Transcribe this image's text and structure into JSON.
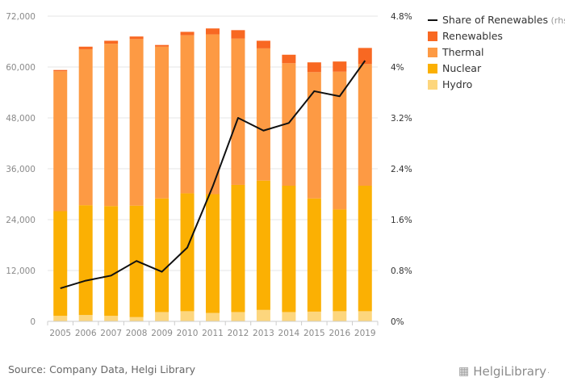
{
  "chart_data": {
    "type": "bar",
    "stacked": true,
    "categories": [
      "2005",
      "2006",
      "2007",
      "2008",
      "2009",
      "2010",
      "2011",
      "2012",
      "2013",
      "2014",
      "2015",
      "2016",
      "2019"
    ],
    "series": [
      {
        "name": "Hydro",
        "color": "#fdd67d",
        "values": [
          1300,
          1500,
          1300,
          1000,
          2200,
          2400,
          2000,
          2200,
          2700,
          2200,
          2300,
          2400,
          2400
        ]
      },
      {
        "name": "Nuclear",
        "color": "#fbb003",
        "values": [
          24700,
          25900,
          25900,
          26300,
          26800,
          27800,
          28000,
          30000,
          30500,
          29800,
          26700,
          24000,
          29600
        ]
      },
      {
        "name": "Thermal",
        "color": "#fd9a44",
        "values": [
          33000,
          36800,
          38300,
          39300,
          35800,
          37300,
          37700,
          34500,
          31200,
          28900,
          29800,
          32500,
          28700
        ]
      },
      {
        "name": "Renewables",
        "color": "#f86822",
        "values": [
          300,
          600,
          700,
          600,
          400,
          800,
          1400,
          2000,
          1800,
          2000,
          2300,
          2400,
          3800
        ]
      }
    ],
    "line_series": {
      "name": "Share of Renewables",
      "unit": "rhs",
      "color": "#111111",
      "values": [
        0.52,
        0.64,
        0.72,
        0.95,
        0.78,
        1.16,
        2.12,
        3.2,
        3.0,
        3.12,
        3.62,
        3.54,
        4.1
      ]
    },
    "ylim": [
      0,
      72000
    ],
    "yticks": [
      "0",
      "12,000",
      "24,000",
      "36,000",
      "48,000",
      "60,000",
      "72,000"
    ],
    "y2lim": [
      0,
      4.8
    ],
    "y2ticks": [
      "0%",
      "0.8%",
      "1.6%",
      "2.4%",
      "3.2%",
      "4%",
      "4.8%"
    ],
    "legend": [
      "Share of Renewables",
      "Renewables",
      "Thermal",
      "Nuclear",
      "Hydro"
    ],
    "legend_unit": "(rhs)",
    "legend_position": "top-right",
    "grid": true,
    "title": "",
    "xlabel": "",
    "ylabel": ""
  },
  "footer": {
    "source": "Source: Company Data, Helgi Library",
    "brand": "HelgiLibrary",
    "brand_dot": "."
  }
}
